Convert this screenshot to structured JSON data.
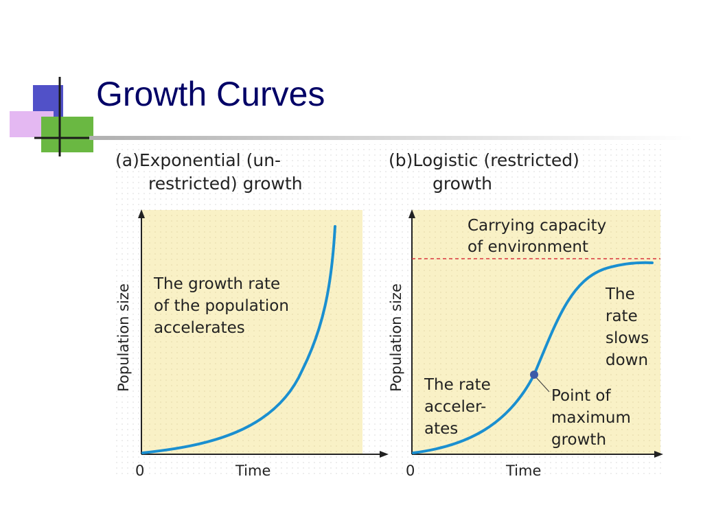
{
  "slide": {
    "title": "Growth Curves",
    "colors": {
      "title": "#000066",
      "curve": "#1a8fd0",
      "plot_bg": "#f9f1c6",
      "carrying_line": "#d9363e",
      "max_point": "#3d5aa8"
    }
  },
  "panel_a": {
    "title_line1": "(a)Exponential (un-",
    "title_line2": "restricted) growth",
    "note": [
      "The growth rate",
      "of the population",
      "accelerates"
    ],
    "y_label": "Population size",
    "x_label": "Time",
    "x_origin": "0"
  },
  "panel_b": {
    "title_line1": "(b)Logistic (restricted)",
    "title_line2": "growth",
    "carrying_capacity": [
      "Carrying capacity",
      "of environment"
    ],
    "rate_accelerates": [
      "The rate",
      "acceler-",
      "ates"
    ],
    "rate_slows": [
      "The",
      "rate",
      "slows",
      "down"
    ],
    "max_point": [
      "Point of",
      "maximum",
      "growth"
    ],
    "y_label": "Population size",
    "x_label": "Time",
    "x_origin": "0"
  }
}
